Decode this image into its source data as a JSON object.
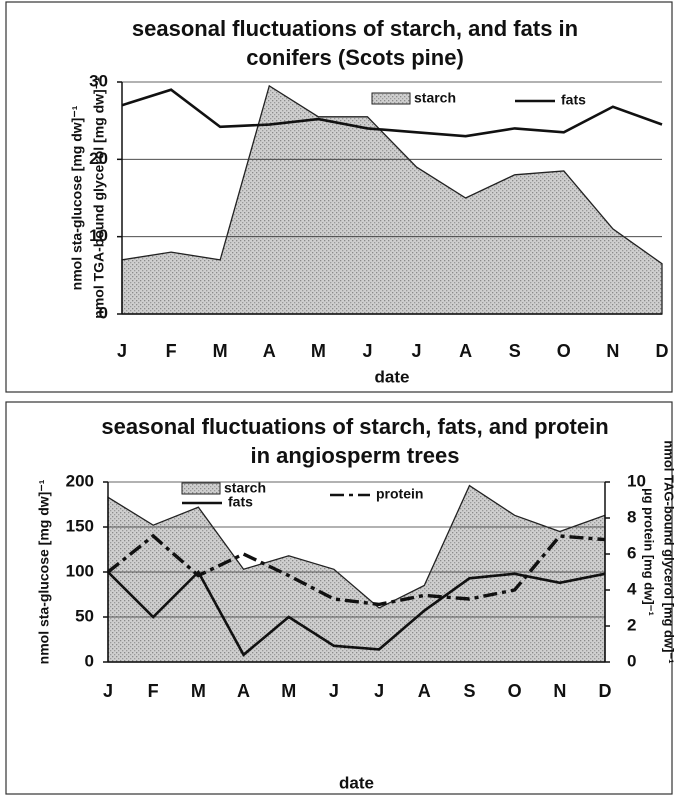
{
  "chart_data": [
    {
      "type": "line",
      "title": "seasonal fluctuations of starch, and fats in conifers (Scots pine)",
      "ylabel": [
        "nmol sta-glucose [mg dw]⁻¹",
        "nmol TGA-bound glycerol [mg dw]⁻¹"
      ],
      "xlabel": "date",
      "categories": [
        "J",
        "F",
        "M",
        "A",
        "M",
        "J",
        "J",
        "A",
        "S",
        "O",
        "N",
        "D"
      ],
      "ylim": [
        0,
        30
      ],
      "yticks": [
        0,
        10,
        20,
        30
      ],
      "grid": true,
      "legend": "top",
      "series": [
        {
          "name": "starch",
          "kind": "area",
          "color": "#c4c4c4",
          "values": [
            7,
            8,
            7,
            29.5,
            25.5,
            25.5,
            19,
            15,
            18,
            18.5,
            11,
            6.5
          ]
        },
        {
          "name": "fats",
          "kind": "line",
          "dash": "solid",
          "color": "#111111",
          "values": [
            27,
            29,
            24.2,
            24.5,
            25.2,
            24,
            23.5,
            23,
            24,
            23.5,
            26.8,
            24.5
          ]
        }
      ]
    },
    {
      "type": "line",
      "title": "seasonal fluctuations of starch, fats, and protein in angiosperm trees",
      "ylabel": [
        "nmol sta-glucose [mg dw]⁻¹"
      ],
      "y2label": [
        "nmol TAG-bound glycerol [mg dw]⁻¹",
        "µg protein [mg dw]⁻¹"
      ],
      "xlabel": "date",
      "categories": [
        "J",
        "F",
        "M",
        "A",
        "M",
        "J",
        "J",
        "A",
        "S",
        "O",
        "N",
        "D"
      ],
      "ylim": [
        0,
        200
      ],
      "yticks": [
        0,
        50,
        100,
        150,
        200
      ],
      "y2lim": [
        0,
        10
      ],
      "y2ticks": [
        0,
        2,
        4,
        6,
        8,
        10
      ],
      "grid": true,
      "legend": "top",
      "series": [
        {
          "name": "starch",
          "kind": "area",
          "color": "#c4c4c4",
          "values": [
            183,
            152,
            172,
            103,
            118,
            103,
            60,
            85,
            196,
            163,
            145,
            163
          ]
        },
        {
          "name": "fats",
          "kind": "line",
          "dash": "solid",
          "color": "#111111",
          "axis": "y2",
          "values": [
            5,
            2.5,
            5,
            0.4,
            2.5,
            0.9,
            0.7,
            2.85,
            4.65,
            4.9,
            4.4,
            4.9
          ]
        },
        {
          "name": "protein",
          "kind": "line",
          "dash": "dashdot",
          "color": "#111111",
          "axis": "y2",
          "values": [
            5,
            7,
            4.8,
            6,
            4.8,
            3.5,
            3.2,
            3.7,
            3.5,
            4,
            7,
            6.8
          ]
        }
      ]
    }
  ]
}
